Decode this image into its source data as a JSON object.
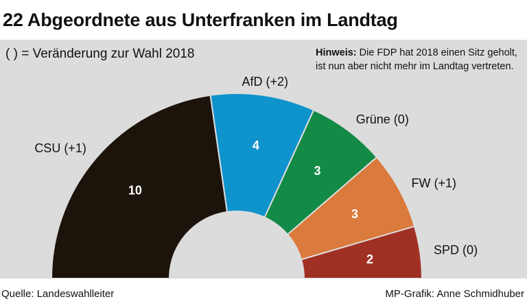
{
  "title": "22 Abgeordnete aus Unterfranken im Landtag",
  "subtitle": "( ) = Veränderung zur Wahl 2018",
  "note": {
    "bold": "Hinweis:",
    "text": " Die FDP hat 2018 einen Sitz geholt, ist nun aber nicht mehr im Landtag vertreten."
  },
  "footer": {
    "source": "Quelle: Landeswahlleiter",
    "credit": "MP-Grafik: Anne Schmidhuber"
  },
  "chart_data": {
    "type": "pie",
    "variant": "half-donut",
    "total": 22,
    "series": [
      {
        "name": "CSU",
        "value": 10,
        "label": "CSU (+1)",
        "color": "#1c130b"
      },
      {
        "name": "AfD",
        "value": 4,
        "label": "AfD (+2)",
        "color": "#0f93cc"
      },
      {
        "name": "Grüne",
        "value": 3,
        "label": "Grüne (0)",
        "color": "#138a45"
      },
      {
        "name": "FW",
        "value": 3,
        "label": "FW (+1)",
        "color": "#da7a3c"
      },
      {
        "name": "SPD",
        "value": 2,
        "label": "SPD (0)",
        "color": "#a13024"
      }
    ]
  }
}
